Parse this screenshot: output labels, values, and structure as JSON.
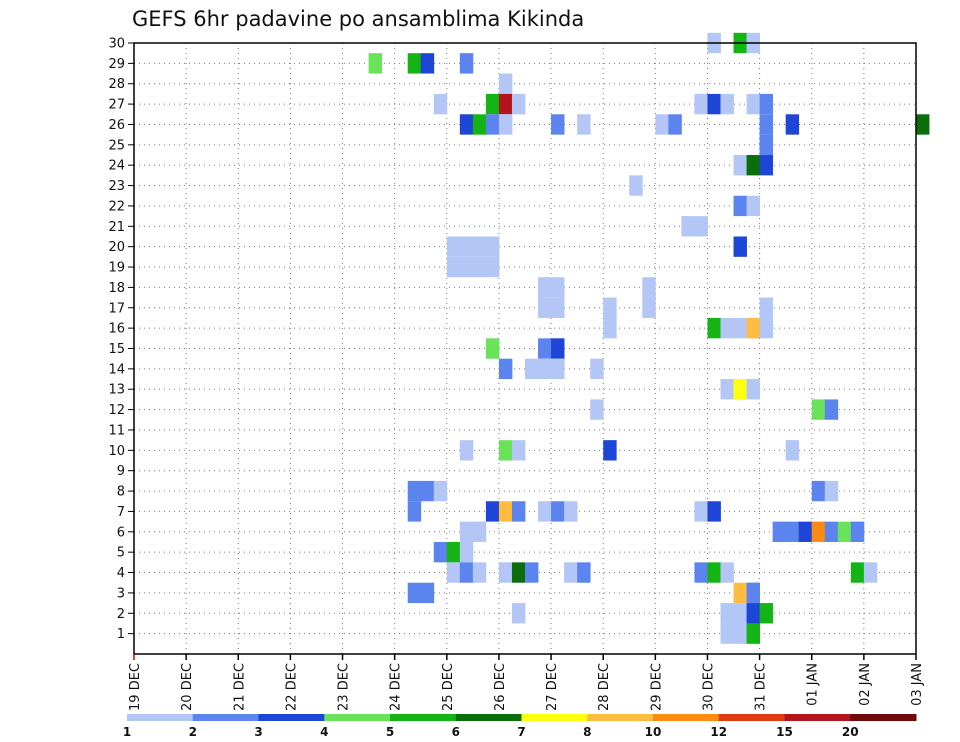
{
  "chart_data": {
    "type": "heatmap",
    "title": "GEFS 6hr padavine po ansamblima Kikinda",
    "x_tick_labels": [
      "19 DEC",
      "20 DEC",
      "21 DEC",
      "22 DEC",
      "23 DEC",
      "24 DEC",
      "25 DEC",
      "26 DEC",
      "27 DEC",
      "28 DEC",
      "29 DEC",
      "30 DEC",
      "31 DEC",
      "01 JAN",
      "02 JAN",
      "03 JAN"
    ],
    "y_tick_labels": [
      "1",
      "2",
      "3",
      "4",
      "5",
      "6",
      "7",
      "8",
      "9",
      "10",
      "11",
      "12",
      "13",
      "14",
      "15",
      "16",
      "17",
      "18",
      "19",
      "20",
      "21",
      "22",
      "23",
      "24",
      "25",
      "26",
      "27",
      "28",
      "29",
      "30"
    ],
    "x_range_steps": [
      0,
      60
    ],
    "y_range_members": [
      0,
      30
    ],
    "step_hours": 6,
    "grid": true,
    "legend": {
      "position": "bottom",
      "labels": [
        "1",
        "2",
        "3",
        "4",
        "5",
        "6",
        "7",
        "8",
        "10",
        "12",
        "15",
        "20"
      ],
      "colors": [
        "#b3c6f5",
        "#5b84ee",
        "#1e46d6",
        "#6ae35a",
        "#14b414",
        "#0a6e0a",
        "#ffff10",
        "#ffbc40",
        "#ff8a12",
        "#e03a12",
        "#b4141e",
        "#6e0a0a"
      ]
    },
    "cells": [
      [
        44,
        29,
        0
      ],
      [
        46,
        29,
        4
      ],
      [
        47,
        29,
        0
      ],
      [
        18,
        28,
        3
      ],
      [
        21,
        28,
        4
      ],
      [
        22,
        28,
        2
      ],
      [
        25,
        28,
        1
      ],
      [
        28,
        27,
        0
      ],
      [
        23,
        26,
        0
      ],
      [
        27,
        26,
        4
      ],
      [
        28,
        26,
        10
      ],
      [
        29,
        26,
        0
      ],
      [
        43,
        26,
        0
      ],
      [
        44,
        26,
        2
      ],
      [
        45,
        26,
        0
      ],
      [
        47,
        26,
        0
      ],
      [
        48,
        26,
        1
      ],
      [
        25,
        25,
        2
      ],
      [
        26,
        25,
        4
      ],
      [
        27,
        25,
        1
      ],
      [
        28,
        25,
        0
      ],
      [
        32,
        25,
        1
      ],
      [
        34,
        25,
        0
      ],
      [
        40,
        25,
        0
      ],
      [
        41,
        25,
        1
      ],
      [
        48,
        25,
        1
      ],
      [
        50,
        25,
        2
      ],
      [
        60,
        25,
        5
      ],
      [
        48,
        24,
        1
      ],
      [
        46,
        23,
        0
      ],
      [
        47,
        23,
        5
      ],
      [
        48,
        23,
        2
      ],
      [
        38,
        22,
        0
      ],
      [
        46,
        21,
        1
      ],
      [
        47,
        21,
        0
      ],
      [
        42,
        20,
        0
      ],
      [
        43,
        20,
        0
      ],
      [
        24,
        18,
        0
      ],
      [
        25,
        18,
        0
      ],
      [
        26,
        18,
        0
      ],
      [
        27,
        18,
        0
      ],
      [
        24,
        19,
        0
      ],
      [
        25,
        19,
        0
      ],
      [
        26,
        19,
        0
      ],
      [
        27,
        19,
        0
      ],
      [
        46,
        19,
        2
      ],
      [
        31,
        17,
        0
      ],
      [
        32,
        17,
        0
      ],
      [
        39,
        17,
        0
      ],
      [
        31,
        16,
        0
      ],
      [
        32,
        16,
        0
      ],
      [
        36,
        16,
        0
      ],
      [
        39,
        16,
        0
      ],
      [
        48,
        16,
        0
      ],
      [
        36,
        15,
        0
      ],
      [
        44,
        15,
        4
      ],
      [
        45,
        15,
        0
      ],
      [
        46,
        15,
        0
      ],
      [
        47,
        15,
        7
      ],
      [
        48,
        15,
        0
      ],
      [
        27,
        14,
        3
      ],
      [
        31,
        14,
        1
      ],
      [
        32,
        14,
        2
      ],
      [
        28,
        13,
        1
      ],
      [
        30,
        13,
        0
      ],
      [
        31,
        13,
        0
      ],
      [
        32,
        13,
        0
      ],
      [
        35,
        13,
        0
      ],
      [
        45,
        12,
        0
      ],
      [
        46,
        12,
        6
      ],
      [
        47,
        12,
        0
      ],
      [
        52,
        11,
        3
      ],
      [
        53,
        11,
        1
      ],
      [
        35,
        11,
        0
      ],
      [
        25,
        9,
        0
      ],
      [
        28,
        9,
        3
      ],
      [
        29,
        9,
        0
      ],
      [
        36,
        9,
        2
      ],
      [
        50,
        9,
        0
      ],
      [
        21,
        7,
        1
      ],
      [
        22,
        7,
        1
      ],
      [
        23,
        7,
        0
      ],
      [
        52,
        7,
        1
      ],
      [
        53,
        7,
        0
      ],
      [
        21,
        6,
        1
      ],
      [
        27,
        6,
        2
      ],
      [
        28,
        6,
        7
      ],
      [
        29,
        6,
        1
      ],
      [
        31,
        6,
        0
      ],
      [
        32,
        6,
        1
      ],
      [
        33,
        6,
        0
      ],
      [
        43,
        6,
        0
      ],
      [
        44,
        6,
        2
      ],
      [
        25,
        5,
        0
      ],
      [
        26,
        5,
        0
      ],
      [
        49,
        5,
        1
      ],
      [
        50,
        5,
        1
      ],
      [
        51,
        5,
        2
      ],
      [
        52,
        5,
        8
      ],
      [
        53,
        5,
        1
      ],
      [
        54,
        5,
        3
      ],
      [
        55,
        5,
        1
      ],
      [
        23,
        4,
        1
      ],
      [
        24,
        4,
        4
      ],
      [
        25,
        4,
        0
      ],
      [
        24,
        3,
        0
      ],
      [
        25,
        3,
        1
      ],
      [
        26,
        3,
        0
      ],
      [
        28,
        3,
        0
      ],
      [
        29,
        3,
        5
      ],
      [
        30,
        3,
        1
      ],
      [
        33,
        3,
        0
      ],
      [
        34,
        3,
        1
      ],
      [
        43,
        3,
        1
      ],
      [
        44,
        3,
        4
      ],
      [
        45,
        3,
        0
      ],
      [
        55,
        3,
        4
      ],
      [
        56,
        3,
        0
      ],
      [
        21,
        2,
        1
      ],
      [
        22,
        2,
        1
      ],
      [
        46,
        2,
        7
      ],
      [
        47,
        2,
        1
      ],
      [
        47,
        2,
        1
      ],
      [
        29,
        1,
        0
      ],
      [
        45,
        1,
        0
      ],
      [
        46,
        1,
        0
      ],
      [
        47,
        1,
        2
      ],
      [
        48,
        1,
        4
      ],
      [
        45,
        0,
        0
      ],
      [
        46,
        0,
        0
      ],
      [
        47,
        0,
        4
      ]
    ]
  }
}
